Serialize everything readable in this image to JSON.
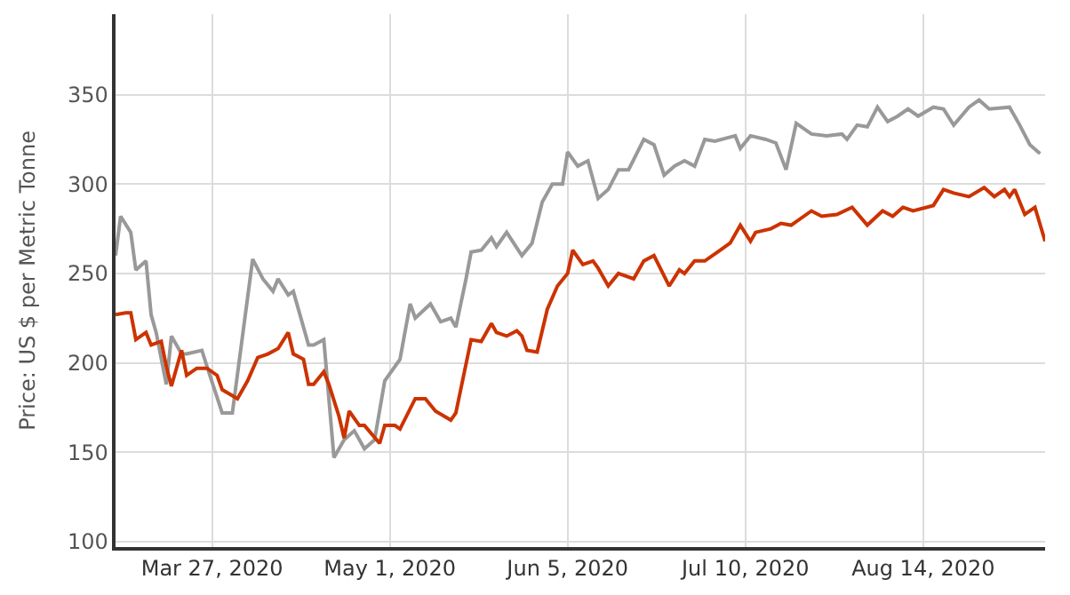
{
  "chart_data": {
    "type": "line",
    "ylabel": "Price: US $ per Metric Tonne",
    "xlim": [
      "2020-03-08",
      "2020-09-07"
    ],
    "ylim": [
      97,
      395
    ],
    "xticks": [
      {
        "value": "2020-03-27",
        "label": "Mar 27, 2020"
      },
      {
        "value": "2020-05-01",
        "label": "May 1, 2020"
      },
      {
        "value": "2020-06-05",
        "label": "Jun 5, 2020"
      },
      {
        "value": "2020-07-10",
        "label": "Jul 10, 2020"
      },
      {
        "value": "2020-08-14",
        "label": "Aug 14, 2020"
      }
    ],
    "yticks": [
      100,
      150,
      200,
      250,
      300,
      350
    ],
    "grid": true,
    "marker": "none",
    "line_style": "solid",
    "series": [
      {
        "color": "#999999",
        "x": [
          "2020-03-08",
          "2020-03-09",
          "2020-03-11",
          "2020-03-12",
          "2020-03-14",
          "2020-03-15",
          "2020-03-16",
          "2020-03-18",
          "2020-03-19",
          "2020-03-21",
          "2020-03-22",
          "2020-03-25",
          "2020-03-26",
          "2020-03-29",
          "2020-03-31",
          "2020-04-04",
          "2020-04-06",
          "2020-04-08",
          "2020-04-09",
          "2020-04-11",
          "2020-04-12",
          "2020-04-15",
          "2020-04-16",
          "2020-04-18",
          "2020-04-20",
          "2020-04-22",
          "2020-04-24",
          "2020-04-26",
          "2020-04-28",
          "2020-04-30",
          "2020-05-03",
          "2020-05-05",
          "2020-05-06",
          "2020-05-09",
          "2020-05-11",
          "2020-05-13",
          "2020-05-14",
          "2020-05-16",
          "2020-05-17",
          "2020-05-19",
          "2020-05-21",
          "2020-05-22",
          "2020-05-24",
          "2020-05-27",
          "2020-05-29",
          "2020-05-31",
          "2020-06-02",
          "2020-06-04",
          "2020-06-05",
          "2020-06-07",
          "2020-06-09",
          "2020-06-11",
          "2020-06-13",
          "2020-06-15",
          "2020-06-17",
          "2020-06-20",
          "2020-06-22",
          "2020-06-24",
          "2020-06-26",
          "2020-06-28",
          "2020-06-30",
          "2020-07-02",
          "2020-07-04",
          "2020-07-08",
          "2020-07-09",
          "2020-07-11",
          "2020-07-14",
          "2020-07-16",
          "2020-07-18",
          "2020-07-20",
          "2020-07-23",
          "2020-07-26",
          "2020-07-29",
          "2020-07-30",
          "2020-08-01",
          "2020-08-03",
          "2020-08-05",
          "2020-08-07",
          "2020-08-09",
          "2020-08-11",
          "2020-08-13",
          "2020-08-16",
          "2020-08-18",
          "2020-08-20",
          "2020-08-23",
          "2020-08-25",
          "2020-08-27",
          "2020-08-31",
          "2020-09-02",
          "2020-09-04",
          "2020-09-06"
        ],
        "values": [
          260,
          282,
          273,
          252,
          257,
          227,
          217,
          188,
          215,
          205,
          205,
          207,
          198,
          172,
          172,
          258,
          247,
          240,
          247,
          238,
          240,
          210,
          210,
          213,
          147,
          157,
          162,
          152,
          157,
          190,
          202,
          233,
          225,
          233,
          223,
          225,
          220,
          247,
          262,
          263,
          270,
          265,
          273,
          260,
          267,
          290,
          300,
          300,
          318,
          310,
          313,
          292,
          297,
          308,
          308,
          325,
          322,
          305,
          310,
          313,
          310,
          325,
          324,
          327,
          320,
          327,
          325,
          323,
          308,
          334,
          328,
          327,
          328,
          325,
          333,
          332,
          343,
          335,
          338,
          342,
          338,
          343,
          342,
          333,
          343,
          347,
          342,
          343,
          333,
          322,
          317
        ]
      },
      {
        "color": "#cc3300",
        "x": [
          "2020-03-08",
          "2020-03-10",
          "2020-03-11",
          "2020-03-12",
          "2020-03-14",
          "2020-03-15",
          "2020-03-17",
          "2020-03-18",
          "2020-03-19",
          "2020-03-21",
          "2020-03-22",
          "2020-03-24",
          "2020-03-26",
          "2020-03-28",
          "2020-03-29",
          "2020-04-01",
          "2020-04-03",
          "2020-04-05",
          "2020-04-07",
          "2020-04-09",
          "2020-04-11",
          "2020-04-12",
          "2020-04-14",
          "2020-04-15",
          "2020-04-16",
          "2020-04-18",
          "2020-04-19",
          "2020-04-21",
          "2020-04-22",
          "2020-04-23",
          "2020-04-25",
          "2020-04-26",
          "2020-04-29",
          "2020-04-30",
          "2020-05-02",
          "2020-05-03",
          "2020-05-06",
          "2020-05-08",
          "2020-05-10",
          "2020-05-13",
          "2020-05-14",
          "2020-05-17",
          "2020-05-19",
          "2020-05-21",
          "2020-05-22",
          "2020-05-24",
          "2020-05-26",
          "2020-05-27",
          "2020-05-28",
          "2020-05-30",
          "2020-06-01",
          "2020-06-03",
          "2020-06-05",
          "2020-06-06",
          "2020-06-08",
          "2020-06-10",
          "2020-06-11",
          "2020-06-13",
          "2020-06-15",
          "2020-06-18",
          "2020-06-20",
          "2020-06-22",
          "2020-06-25",
          "2020-06-27",
          "2020-06-28",
          "2020-06-30",
          "2020-07-02",
          "2020-07-05",
          "2020-07-07",
          "2020-07-09",
          "2020-07-11",
          "2020-07-12",
          "2020-07-15",
          "2020-07-17",
          "2020-07-19",
          "2020-07-23",
          "2020-07-25",
          "2020-07-28",
          "2020-07-31",
          "2020-08-03",
          "2020-08-06",
          "2020-08-08",
          "2020-08-10",
          "2020-08-12",
          "2020-08-16",
          "2020-08-18",
          "2020-08-20",
          "2020-08-23",
          "2020-08-26",
          "2020-08-28",
          "2020-08-30",
          "2020-08-31",
          "2020-09-01",
          "2020-09-03",
          "2020-09-05",
          "2020-09-07"
        ],
        "values": [
          227,
          228,
          228,
          213,
          217,
          210,
          212,
          198,
          187,
          207,
          193,
          197,
          197,
          193,
          185,
          180,
          190,
          203,
          205,
          208,
          217,
          205,
          202,
          188,
          188,
          195,
          188,
          170,
          158,
          173,
          165,
          165,
          155,
          165,
          165,
          163,
          180,
          180,
          173,
          168,
          172,
          213,
          212,
          222,
          217,
          215,
          218,
          215,
          207,
          206,
          230,
          243,
          250,
          263,
          255,
          257,
          253,
          243,
          250,
          247,
          257,
          260,
          243,
          252,
          250,
          257,
          257,
          263,
          267,
          277,
          268,
          273,
          275,
          278,
          277,
          285,
          282,
          283,
          287,
          277,
          285,
          282,
          287,
          285,
          288,
          297,
          295,
          293,
          298,
          293,
          297,
          293,
          297,
          283,
          287,
          268
        ]
      }
    ]
  }
}
